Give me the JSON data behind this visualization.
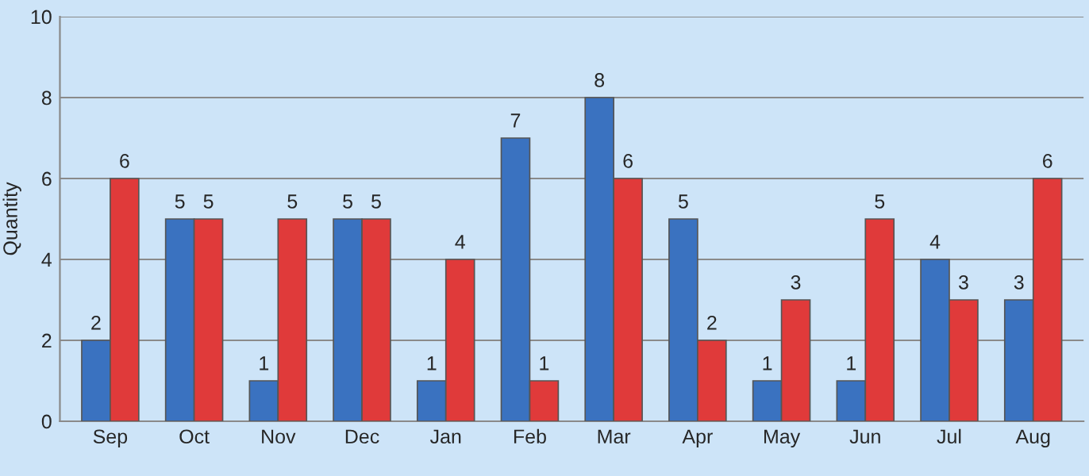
{
  "chart_data": {
    "type": "bar",
    "ylabel": "Quantity",
    "categories": [
      "Sep",
      "Oct",
      "Nov",
      "Dec",
      "Jan",
      "Feb",
      "Mar",
      "Apr",
      "May",
      "Jun",
      "Jul",
      "Aug"
    ],
    "series": [
      {
        "color": "#3a72c0",
        "values": [
          2,
          5,
          1,
          5,
          1,
          7,
          8,
          5,
          1,
          1,
          4,
          3
        ]
      },
      {
        "color": "#e03a3a",
        "values": [
          6,
          5,
          5,
          5,
          4,
          1,
          6,
          2,
          3,
          5,
          3,
          6
        ]
      }
    ],
    "ylim": [
      0,
      10
    ],
    "yticks": [
      0,
      2,
      4,
      6,
      8,
      10
    ],
    "grid": "y",
    "data_labels": true
  }
}
